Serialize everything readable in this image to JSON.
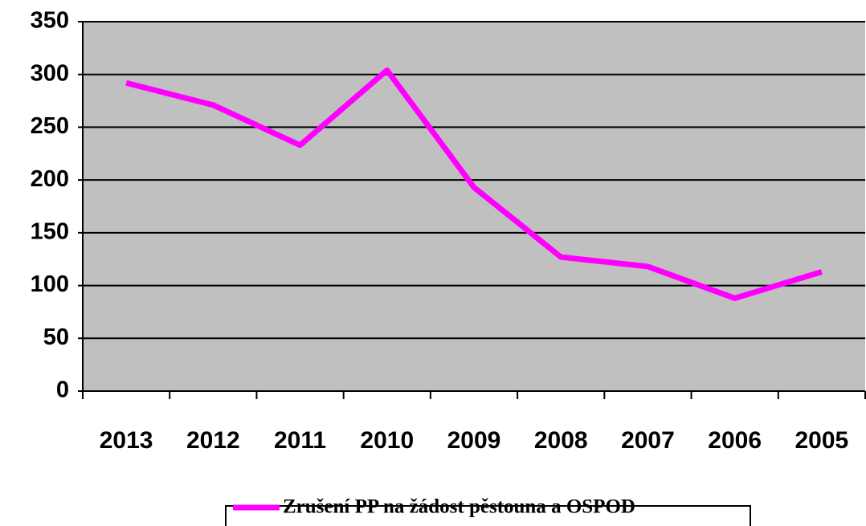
{
  "chart_data": {
    "type": "line",
    "categories": [
      "2013",
      "2012",
      "2011",
      "2010",
      "2009",
      "2008",
      "2007",
      "2006",
      "2005"
    ],
    "series": [
      {
        "name": "Zrušení PP na žádost pěstouna a OSPOD",
        "color": "#ff00ff",
        "values": [
          292,
          271,
          233,
          304,
          193,
          127,
          118,
          88,
          113
        ]
      }
    ],
    "ylim": [
      0,
      350
    ],
    "yticks": [
      0,
      50,
      100,
      150,
      200,
      250,
      300,
      350
    ],
    "grid": true,
    "legend": "bottom"
  }
}
